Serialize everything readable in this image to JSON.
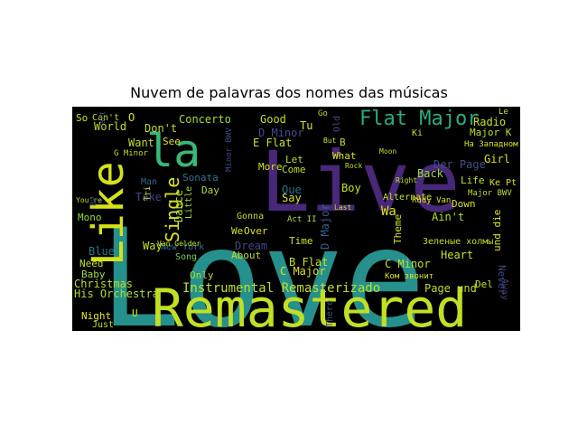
{
  "title": "Nuvem de palavras dos nomes das músicas",
  "words": [
    {
      "text": "Love",
      "color": "#25908c"
    },
    {
      "text": "Remastered",
      "color": "#c2df23"
    },
    {
      "text": "Live",
      "color": "#482878"
    },
    {
      "text": "la",
      "color": "#38b977"
    },
    {
      "text": "Like",
      "color": "#d5e21a"
    },
    {
      "text": "Flat Major",
      "color": "#27ad81"
    },
    {
      "text": "Single",
      "color": "#dde318"
    },
    {
      "text": "Instrumental Remasterizado",
      "color": "#bddf26"
    },
    {
      "text": "His Orchestra",
      "color": "#addc30"
    },
    {
      "text": "Christmas",
      "color": "#b8de29"
    },
    {
      "text": "Baby",
      "color": "#a0da39"
    },
    {
      "text": "Need",
      "color": "#bddf26"
    },
    {
      "text": "Blue",
      "color": "#2a788e"
    },
    {
      "text": "Mono",
      "color": "#95d840"
    },
    {
      "text": "Night",
      "color": "#eae51a"
    },
    {
      "text": "Only",
      "color": "#addc30"
    },
    {
      "text": "Song",
      "color": "#75d054"
    },
    {
      "text": "New York",
      "color": "#2a768e"
    },
    {
      "text": "Way",
      "color": "#c8e020"
    },
    {
      "text": "Dance",
      "color": "#b5de2b"
    },
    {
      "text": "Little",
      "color": "#9bd93c"
    },
    {
      "text": "Take",
      "color": "#3e4a89"
    },
    {
      "text": "Man",
      "color": "#31688e"
    },
    {
      "text": "Want",
      "color": "#bddf26"
    },
    {
      "text": "Sonata",
      "color": "#2b748e"
    },
    {
      "text": "Day",
      "color": "#addc30"
    },
    {
      "text": "Concerto",
      "color": "#a5db36"
    },
    {
      "text": "Don't",
      "color": "#c2df23"
    },
    {
      "text": "See",
      "color": "#dde318"
    },
    {
      "text": "Good",
      "color": "#c2df23"
    },
    {
      "text": "D Minor",
      "color": "#3e4a89"
    },
    {
      "text": "E Flat",
      "color": "#c8e020"
    },
    {
      "text": "More",
      "color": "#d2e21b"
    },
    {
      "text": "Come",
      "color": "#bddf26"
    },
    {
      "text": "Say",
      "color": "#dde318"
    },
    {
      "text": "Que",
      "color": "#2c718e"
    },
    {
      "text": "Tu",
      "color": "#dde318"
    },
    {
      "text": "Let",
      "color": "#b8de29"
    },
    {
      "text": "Boy",
      "color": "#c8e020"
    },
    {
      "text": "What",
      "color": "#dde318"
    },
    {
      "text": "B",
      "color": "#b8de29"
    },
    {
      "text": "Wa",
      "color": "#dde318"
    },
    {
      "text": "Ain't",
      "color": "#b5de2b"
    },
    {
      "text": "Theme",
      "color": "#d2e21b"
    },
    {
      "text": "Heart",
      "color": "#c8e020"
    },
    {
      "text": "D Major",
      "color": "#355f8d"
    },
    {
      "text": "Back",
      "color": "#a0da39"
    },
    {
      "text": "Der Page",
      "color": "#3b528b"
    },
    {
      "text": "Down",
      "color": "#dde318"
    },
    {
      "text": "Life",
      "color": "#c2df23"
    },
    {
      "text": "Girl",
      "color": "#d2e21b"
    },
    {
      "text": "Radio",
      "color": "#c8e020"
    },
    {
      "text": "Major K",
      "color": "#bddf26"
    },
    {
      "text": "Ke Pt",
      "color": "#dde318"
    },
    {
      "text": "Never",
      "color": "#3e4a89"
    },
    {
      "text": "und die",
      "color": "#dde318"
    },
    {
      "text": "Away",
      "color": "#433e85"
    },
    {
      "text": "Page und",
      "color": "#bddf26"
    },
    {
      "text": "Del",
      "color": "#c8e020"
    },
    {
      "text": "C Minor",
      "color": "#c2df23"
    },
    {
      "text": "C Major",
      "color": "#dde318"
    },
    {
      "text": "B Flat",
      "color": "#c8e020"
    },
    {
      "text": "Time",
      "color": "#d2e21b"
    },
    {
      "text": "Dream",
      "color": "#3e4a89"
    },
    {
      "text": "About",
      "color": "#c2df23"
    },
    {
      "text": "Over",
      "color": "#dde318"
    },
    {
      "text": "We",
      "color": "#c8e020"
    },
    {
      "text": "Gonna",
      "color": "#bddf26"
    },
    {
      "text": "World",
      "color": "#c2df23"
    },
    {
      "text": "Can't",
      "color": "#bddf26"
    },
    {
      "text": "So",
      "color": "#d2e21b"
    },
    {
      "text": "O",
      "color": "#dde318"
    },
    {
      "text": "Alternate",
      "color": "#c8e020"
    },
    {
      "text": "Major BWV",
      "color": "#bddf26"
    },
    {
      "text": "Rudy Van",
      "color": "#dde318"
    },
    {
      "text": "Зеленые холмы",
      "color": "#c2df23"
    },
    {
      "text": "Ком звонит",
      "color": "#dde318"
    },
    {
      "text": "На Западном",
      "color": "#dde318"
    },
    {
      "text": "Van Gelder",
      "color": "#c8e020"
    },
    {
      "text": "Just",
      "color": "#c2df23"
    },
    {
      "text": "U",
      "color": "#dde318"
    },
    {
      "text": "There",
      "color": "#3e4a89"
    },
    {
      "text": "Act II",
      "color": "#bddf26"
    },
    {
      "text": "Part",
      "color": "#3e4a89"
    },
    {
      "text": "Minor BWV",
      "color": "#3e4a89"
    },
    {
      "text": "Go",
      "color": "#bddf26"
    },
    {
      "text": "Old",
      "color": "#3e4a89"
    },
    {
      "text": "You're",
      "color": "#bddf26"
    },
    {
      "text": "Tri",
      "color": "#dde318"
    },
    {
      "text": "By",
      "color": "#3e4a89"
    },
    {
      "text": "Le",
      "color": "#c8e020"
    },
    {
      "text": "Ki",
      "color": "#c2df23"
    },
    {
      "text": "G Minor",
      "color": "#bddf26"
    },
    {
      "text": "Rock",
      "color": "#c2df23"
    },
    {
      "text": "Moon",
      "color": "#bddf26"
    },
    {
      "text": "But",
      "color": "#c8e020"
    },
    {
      "text": "Right",
      "color": "#c2df23"
    },
    {
      "text": "Last",
      "color": "#bddf26"
    }
  ]
}
